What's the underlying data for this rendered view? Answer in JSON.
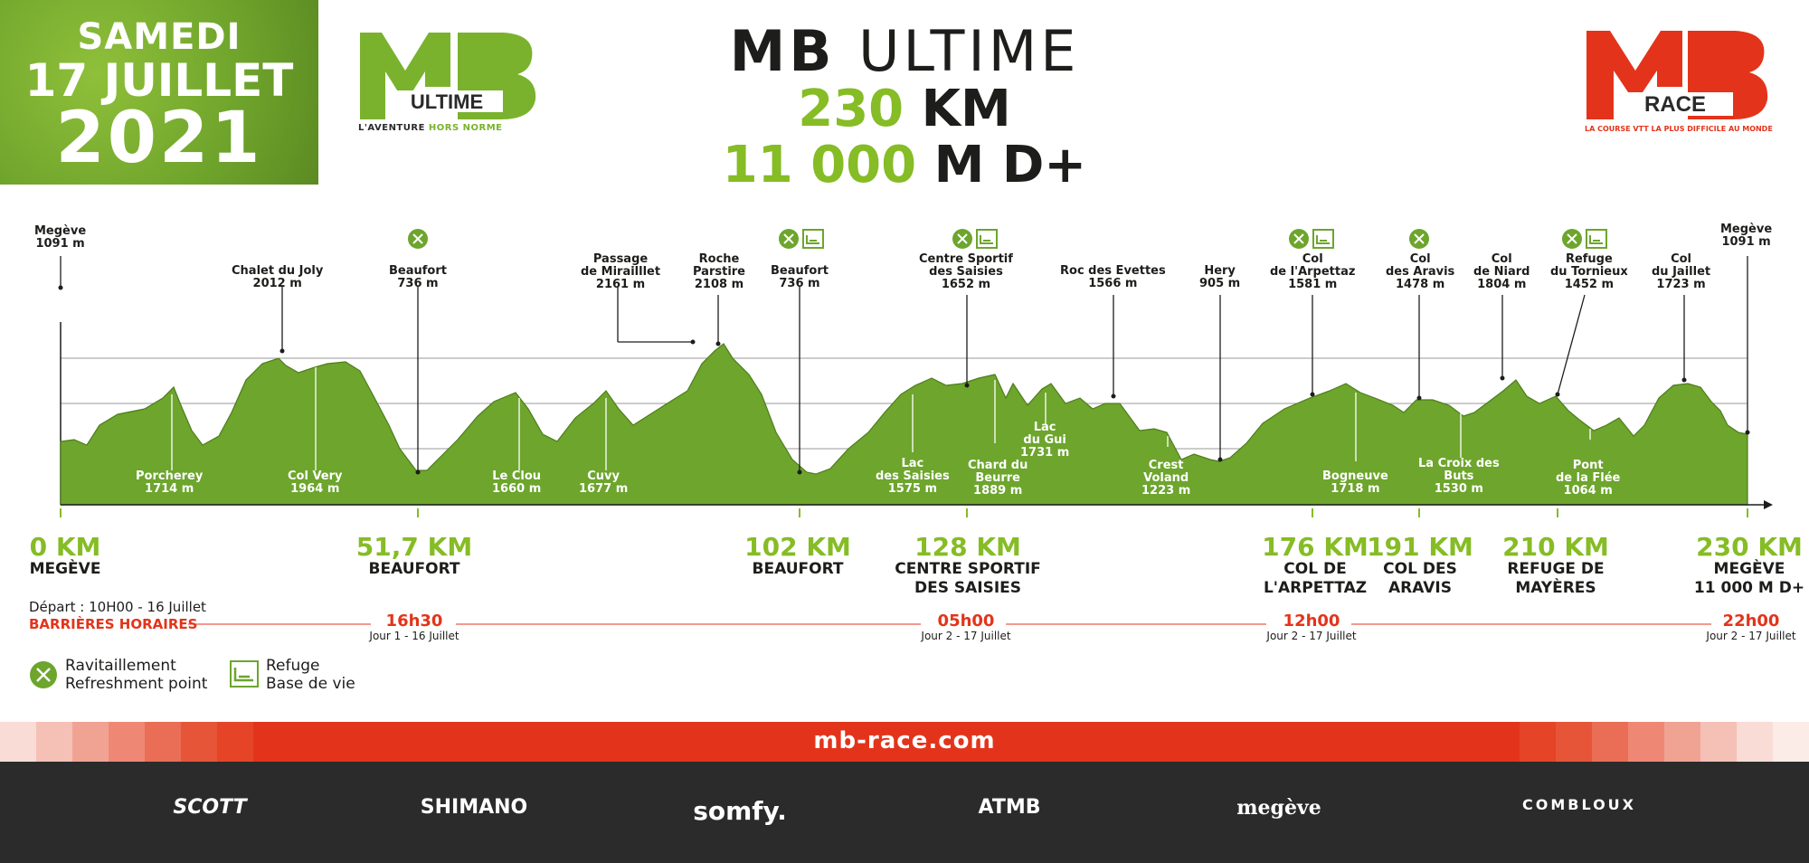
{
  "date": {
    "line1": "SAMEDI",
    "line2": "17 JUILLET",
    "line3": "2021"
  },
  "logo_ultime": {
    "letters": "MB",
    "word": "ULTIME",
    "tag_a": "L'AVENTURE",
    "tag_b": "HORS NORME"
  },
  "title": {
    "brand": "MB",
    "name": "ULTIME",
    "km_value": "230",
    "km_unit": "KM",
    "dplus_value": "11 000",
    "dplus_unit": "M D+"
  },
  "logo_race": {
    "letters": "MB",
    "word": "RACE",
    "tag": "LA COURSE VTT LA PLUS DIFFICILE AU MONDE"
  },
  "colors": {
    "green": "#86bc25",
    "dark_green": "#5f8f1f",
    "red": "#e3341b",
    "dark": "#2b2b2b"
  },
  "points_above": [
    {
      "l1": "Megève",
      "l2": "1091 m"
    },
    {
      "l1": "Chalet du Joly",
      "l2": "2012 m"
    },
    {
      "l1": "Beaufort",
      "l2": "736 m"
    },
    {
      "l1": "Passage",
      "l2": "de Mirailllet",
      "l3": "2161 m"
    },
    {
      "l1": "Roche",
      "l2": "Parstire",
      "l3": "2108 m"
    },
    {
      "l1": "Beaufort",
      "l2": "736 m"
    },
    {
      "l1": "Centre Sportif",
      "l2": "des Saisies",
      "l3": "1652 m"
    },
    {
      "l1": "Roc des Evettes",
      "l2": "1566 m"
    },
    {
      "l1": "Hery",
      "l2": "905 m"
    },
    {
      "l1": "Col",
      "l2": "de l'Arpettaz",
      "l3": "1581 m"
    },
    {
      "l1": "Col",
      "l2": "des Aravis",
      "l3": "1478 m"
    },
    {
      "l1": "Col",
      "l2": "de Niard",
      "l3": "1804 m"
    },
    {
      "l1": "Refuge",
      "l2": "du Tornieux",
      "l3": "1452 m"
    },
    {
      "l1": "Col",
      "l2": "du Jaillet",
      "l3": "1723 m"
    },
    {
      "l1": "Megève",
      "l2": "1091 m"
    }
  ],
  "points_inside": [
    {
      "l1": "Porcherey",
      "l2": "1714 m"
    },
    {
      "l1": "Col Very",
      "l2": "1964 m"
    },
    {
      "l1": "Le Clou",
      "l2": "1660 m"
    },
    {
      "l1": "Cuvy",
      "l2": "1677 m"
    },
    {
      "l1": "Lac",
      "l2": "des Saisies",
      "l3": "1575 m"
    },
    {
      "l1": "Chard du",
      "l2": "Beurre",
      "l3": "1889 m"
    },
    {
      "l1": "Lac",
      "l2": "du Gui",
      "l3": "1731 m"
    },
    {
      "l1": "Crest",
      "l2": "Voland",
      "l3": "1223 m"
    },
    {
      "l1": "Bogneuve",
      "l2": "1718 m"
    },
    {
      "l1": "La Croix des",
      "l2": "Buts",
      "l3": "1530 m"
    },
    {
      "l1": "Pont",
      "l2": "de la Flée",
      "l3": "1064 m"
    }
  ],
  "distances": [
    {
      "km": "0 KM",
      "place1": "MEGÈVE",
      "place2": ""
    },
    {
      "km": "51,7 KM",
      "place1": "BEAUFORT",
      "place2": ""
    },
    {
      "km": "102 KM",
      "place1": "BEAUFORT",
      "place2": ""
    },
    {
      "km": "128 KM",
      "place1": "CENTRE SPORTIF",
      "place2": "DES SAISIES"
    },
    {
      "km": "176 KM",
      "place1": "COL DE",
      "place2": "L'ARPETTAZ"
    },
    {
      "km": "191 KM",
      "place1": "COL DES",
      "place2": "ARAVIS"
    },
    {
      "km": "210 KM",
      "place1": "REFUGE DE",
      "place2": "MAYÈRES"
    },
    {
      "km": "230 KM",
      "place1": "MEGÈVE",
      "place2": "11 000 M D+"
    }
  ],
  "barrieres": {
    "depart": "Départ : 10H00 - 16 Juillet",
    "label": "BARRIÈRES HORAIRES",
    "times": [
      {
        "time": "16h30",
        "sub": "Jour 1 - 16 Juillet"
      },
      {
        "time": "05h00",
        "sub": "Jour 2 - 17 Juillet"
      },
      {
        "time": "12h00",
        "sub": "Jour 2 - 17 Juillet"
      },
      {
        "time": "22h00",
        "sub": "Jour 2 - 17 Juillet"
      }
    ]
  },
  "legend": {
    "ravit_fr": "Ravitaillement",
    "ravit_en": "Refreshment point",
    "refuge_fr": "Refuge",
    "refuge_en": "Base de vie"
  },
  "footer": {
    "site": "mb-race.com",
    "sponsors": [
      "SCOTT",
      "SHIMANO",
      "somfy.",
      "ATMB",
      "megève",
      "COMBLOUX"
    ]
  }
}
